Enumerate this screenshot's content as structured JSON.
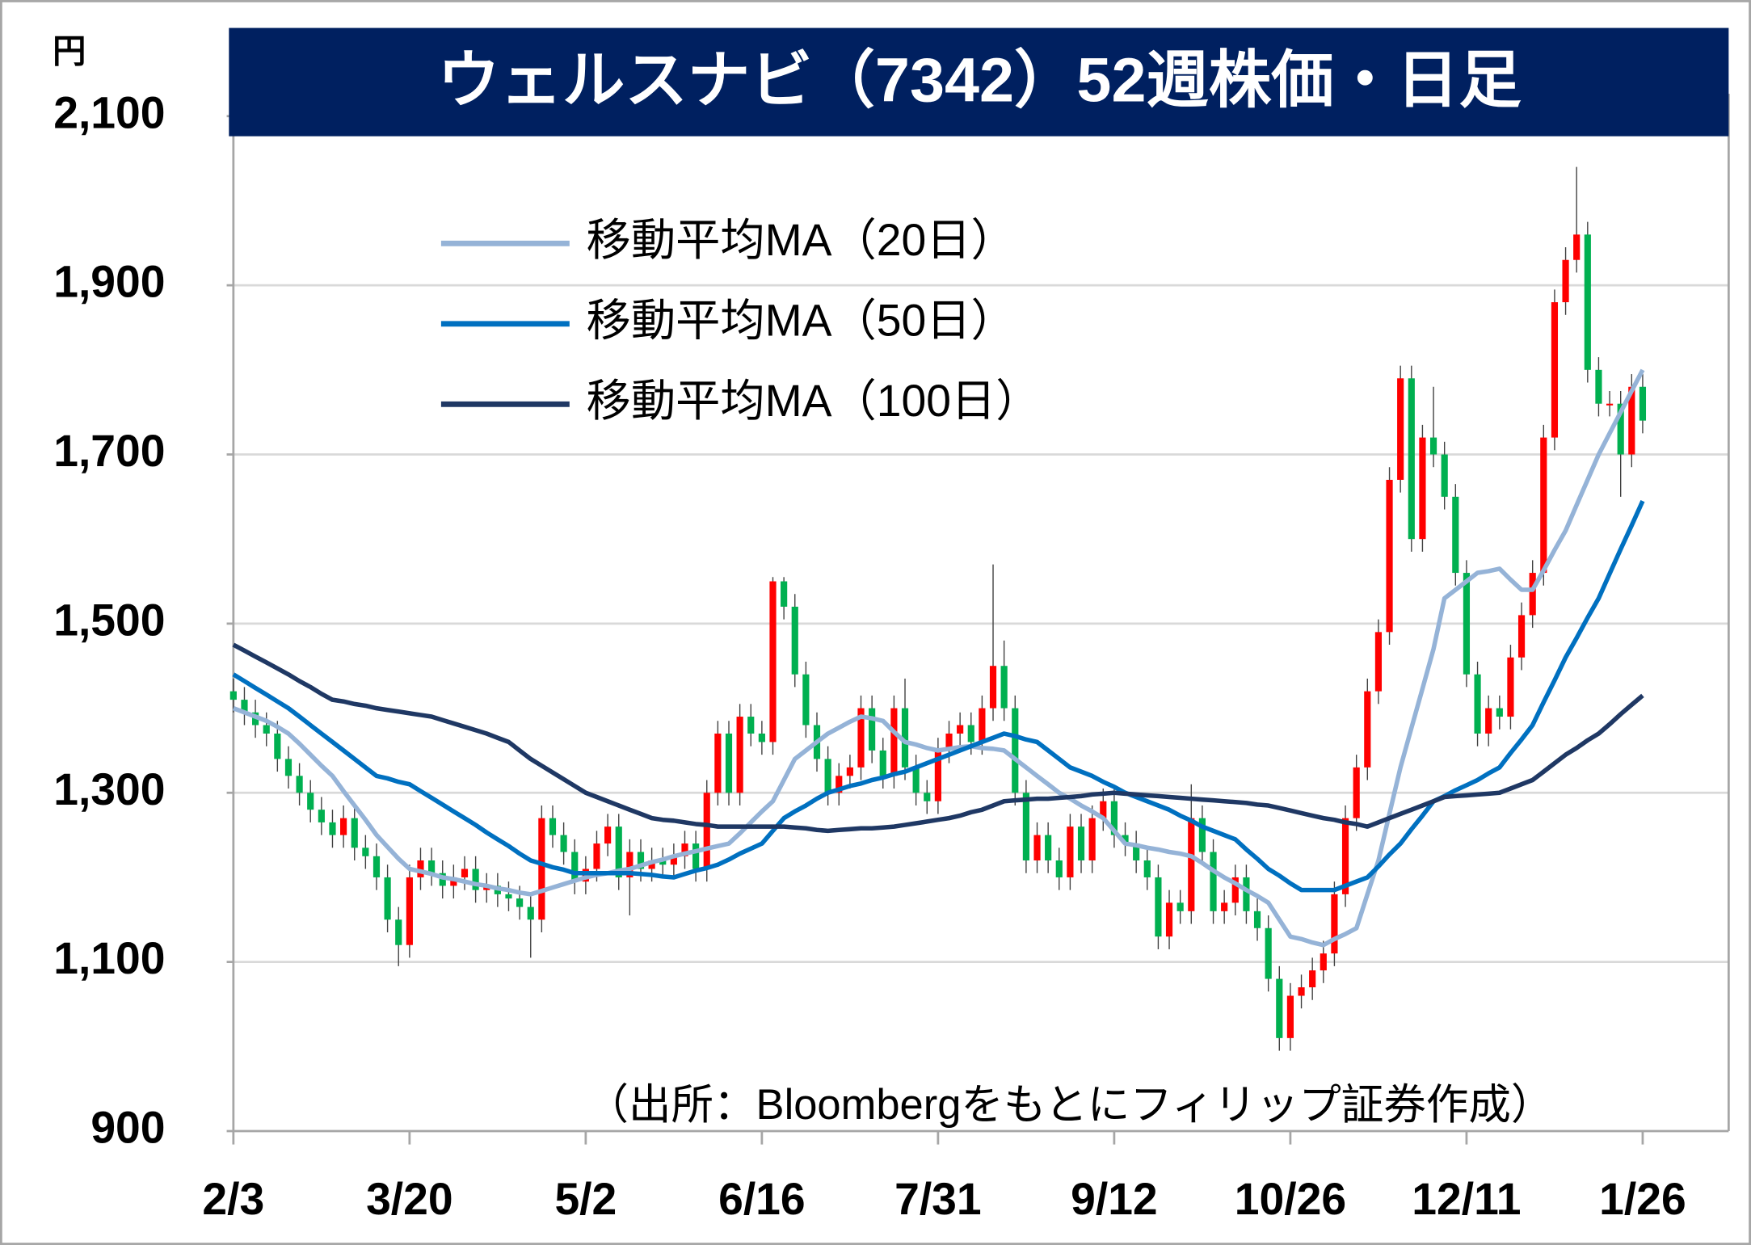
{
  "chart_data": {
    "type": "candlestick",
    "title": "ウェルスナビ（7342）52週株価・日足",
    "y_label": "円",
    "source": "（出所：Bloombergをもとにフィリップ証券作成）",
    "categories": [
      "2/3",
      null,
      null,
      null,
      null,
      null,
      null,
      null,
      null,
      null,
      null,
      null,
      null,
      null,
      null,
      null,
      "3/20",
      null,
      null,
      null,
      null,
      null,
      null,
      null,
      null,
      null,
      null,
      null,
      null,
      null,
      null,
      null,
      "5/2",
      null,
      null,
      null,
      null,
      null,
      null,
      null,
      null,
      null,
      null,
      null,
      null,
      null,
      null,
      null,
      "6/16",
      null,
      null,
      null,
      null,
      null,
      null,
      null,
      null,
      null,
      null,
      null,
      null,
      null,
      null,
      null,
      "7/31",
      null,
      null,
      null,
      null,
      null,
      null,
      null,
      null,
      null,
      null,
      null,
      null,
      null,
      null,
      null,
      "9/12",
      null,
      null,
      null,
      null,
      null,
      null,
      null,
      null,
      null,
      null,
      null,
      null,
      null,
      null,
      null,
      "10/26",
      null,
      null,
      null,
      null,
      null,
      null,
      null,
      null,
      null,
      null,
      null,
      null,
      null,
      null,
      null,
      "12/11",
      null,
      null,
      null,
      null,
      null,
      null,
      null,
      null,
      null,
      null,
      null,
      null,
      null,
      null,
      null,
      "1/26"
    ],
    "open": [
      1420,
      1410,
      1395,
      1380,
      1370,
      1340,
      1320,
      1300,
      1280,
      1265,
      1250,
      1270,
      1235,
      1225,
      1200,
      1150,
      1120,
      1200,
      1220,
      1205,
      1190,
      1200,
      1210,
      1185,
      1190,
      1180,
      1175,
      1165,
      1150,
      1270,
      1250,
      1230,
      1195,
      1210,
      1240,
      1260,
      1200,
      1230,
      1210,
      1220,
      1215,
      1225,
      1240,
      1210,
      1300,
      1370,
      1300,
      1390,
      1370,
      1360,
      1550,
      1520,
      1440,
      1380,
      1340,
      1300,
      1320,
      1330,
      1400,
      1350,
      1320,
      1400,
      1330,
      1300,
      1290,
      1350,
      1370,
      1380,
      1360,
      1400,
      1450,
      1400,
      1300,
      1220,
      1250,
      1220,
      1200,
      1260,
      1220,
      1270,
      1290,
      1250,
      1240,
      1220,
      1200,
      1130,
      1170,
      1160,
      1270,
      1230,
      1160,
      1170,
      1200,
      1160,
      1140,
      1080,
      1010,
      1060,
      1070,
      1090,
      1110,
      1180,
      1270,
      1330,
      1420,
      1490,
      1670,
      1790,
      1600,
      1720,
      1700,
      1650,
      1560,
      1440,
      1370,
      1400,
      1390,
      1460,
      1510,
      1560,
      1720,
      1880,
      1930,
      1960,
      1800,
      1760,
      1760,
      1700,
      1780
    ],
    "high": [
      1435,
      1425,
      1410,
      1395,
      1385,
      1355,
      1335,
      1315,
      1295,
      1280,
      1285,
      1285,
      1250,
      1240,
      1215,
      1165,
      1215,
      1235,
      1235,
      1220,
      1215,
      1225,
      1225,
      1205,
      1205,
      1195,
      1190,
      1180,
      1285,
      1285,
      1265,
      1245,
      1225,
      1255,
      1275,
      1275,
      1245,
      1245,
      1235,
      1235,
      1240,
      1255,
      1255,
      1315,
      1385,
      1385,
      1405,
      1405,
      1385,
      1555,
      1555,
      1535,
      1455,
      1395,
      1355,
      1335,
      1345,
      1415,
      1415,
      1365,
      1415,
      1435,
      1345,
      1315,
      1365,
      1385,
      1395,
      1395,
      1415,
      1570,
      1480,
      1415,
      1315,
      1265,
      1265,
      1235,
      1275,
      1275,
      1285,
      1305,
      1305,
      1265,
      1255,
      1235,
      1215,
      1185,
      1185,
      1310,
      1285,
      1245,
      1185,
      1215,
      1215,
      1175,
      1155,
      1095,
      1075,
      1085,
      1105,
      1125,
      1195,
      1285,
      1345,
      1435,
      1505,
      1685,
      1805,
      1805,
      1735,
      1780,
      1715,
      1665,
      1575,
      1455,
      1415,
      1415,
      1475,
      1525,
      1575,
      1735,
      1895,
      1945,
      2040,
      1975,
      1815,
      1775,
      1775,
      1795,
      1795
    ],
    "low": [
      1395,
      1380,
      1365,
      1355,
      1325,
      1305,
      1285,
      1265,
      1250,
      1235,
      1235,
      1220,
      1210,
      1185,
      1135,
      1095,
      1105,
      1185,
      1190,
      1175,
      1175,
      1185,
      1170,
      1170,
      1165,
      1160,
      1150,
      1105,
      1135,
      1235,
      1215,
      1180,
      1180,
      1195,
      1225,
      1185,
      1155,
      1195,
      1195,
      1200,
      1200,
      1210,
      1195,
      1195,
      1285,
      1285,
      1285,
      1355,
      1345,
      1345,
      1505,
      1425,
      1365,
      1325,
      1285,
      1285,
      1305,
      1315,
      1335,
      1305,
      1305,
      1315,
      1285,
      1275,
      1275,
      1335,
      1355,
      1345,
      1345,
      1385,
      1385,
      1285,
      1205,
      1205,
      1205,
      1185,
      1185,
      1205,
      1205,
      1255,
      1235,
      1225,
      1205,
      1185,
      1115,
      1115,
      1145,
      1145,
      1215,
      1145,
      1145,
      1155,
      1145,
      1125,
      1065,
      995,
      995,
      1045,
      1055,
      1075,
      1095,
      1165,
      1255,
      1315,
      1405,
      1475,
      1655,
      1585,
      1585,
      1685,
      1635,
      1545,
      1425,
      1355,
      1355,
      1375,
      1375,
      1445,
      1495,
      1545,
      1705,
      1865,
      1915,
      1785,
      1745,
      1745,
      1650,
      1685,
      1725
    ],
    "close": [
      1410,
      1395,
      1380,
      1370,
      1340,
      1320,
      1300,
      1280,
      1265,
      1250,
      1270,
      1235,
      1225,
      1200,
      1150,
      1120,
      1200,
      1220,
      1205,
      1190,
      1200,
      1210,
      1185,
      1190,
      1180,
      1175,
      1165,
      1150,
      1270,
      1250,
      1230,
      1195,
      1210,
      1240,
      1260,
      1200,
      1230,
      1210,
      1220,
      1215,
      1225,
      1240,
      1210,
      1300,
      1370,
      1300,
      1390,
      1370,
      1360,
      1550,
      1520,
      1440,
      1380,
      1340,
      1300,
      1320,
      1330,
      1400,
      1350,
      1320,
      1400,
      1330,
      1300,
      1290,
      1350,
      1370,
      1380,
      1360,
      1400,
      1450,
      1400,
      1300,
      1220,
      1250,
      1220,
      1200,
      1260,
      1220,
      1270,
      1290,
      1250,
      1240,
      1220,
      1200,
      1130,
      1170,
      1160,
      1270,
      1230,
      1160,
      1170,
      1200,
      1160,
      1140,
      1080,
      1010,
      1060,
      1070,
      1090,
      1110,
      1180,
      1270,
      1330,
      1420,
      1490,
      1670,
      1790,
      1600,
      1720,
      1700,
      1650,
      1560,
      1440,
      1370,
      1400,
      1390,
      1460,
      1510,
      1560,
      1720,
      1880,
      1930,
      1960,
      1800,
      1760,
      1760,
      1700,
      1780,
      1740
    ],
    "up_color": "#ff0000",
    "down_color": "#00b050",
    "series": [
      {
        "name": "移動平均MA（20日）",
        "color": "#95b3d7",
        "values": [
          1400,
          1395,
          1390,
          1385,
          1378,
          1370,
          1358,
          1345,
          1332,
          1320,
          1302,
          1285,
          1268,
          1250,
          1236,
          1222,
          1210,
          1207,
          1204,
          1200,
          1198,
          1195,
          1192,
          1190,
          1187,
          1185,
          1182,
          1180,
          1184,
          1188,
          1192,
          1196,
          1200,
          1203,
          1205,
          1208,
          1210,
          1214,
          1218,
          1221,
          1225,
          1228,
          1231,
          1234,
          1237,
          1240,
          1252,
          1265,
          1278,
          1290,
          1315,
          1340,
          1350,
          1360,
          1370,
          1377,
          1384,
          1390,
          1388,
          1385,
          1372,
          1360,
          1357,
          1353,
          1350,
          1352,
          1354,
          1355,
          1353,
          1352,
          1350,
          1340,
          1330,
          1320,
          1310,
          1300,
          1293,
          1285,
          1278,
          1270,
          1255,
          1240,
          1238,
          1235,
          1233,
          1230,
          1228,
          1225,
          1217,
          1208,
          1200,
          1193,
          1185,
          1178,
          1170,
          1150,
          1130,
          1127,
          1123,
          1120,
          1127,
          1133,
          1140,
          1180,
          1220,
          1275,
          1330,
          1377,
          1423,
          1470,
          1530,
          1540,
          1550,
          1560,
          1562,
          1565,
          1552,
          1540,
          1540,
          1563,
          1587,
          1610,
          1640,
          1670,
          1700,
          1725,
          1750,
          1775,
          1800
        ]
      },
      {
        "name": "移動平均MA（50日）",
        "color": "#0070c0",
        "values": [
          1440,
          1432,
          1424,
          1416,
          1408,
          1400,
          1390,
          1380,
          1370,
          1360,
          1350,
          1340,
          1330,
          1320,
          1317,
          1313,
          1310,
          1302,
          1294,
          1286,
          1278,
          1270,
          1262,
          1253,
          1245,
          1237,
          1228,
          1220,
          1216,
          1212,
          1209,
          1205,
          1205,
          1205,
          1205,
          1205,
          1205,
          1204,
          1203,
          1201,
          1200,
          1204,
          1208,
          1211,
          1215,
          1221,
          1228,
          1234,
          1240,
          1255,
          1270,
          1278,
          1285,
          1293,
          1300,
          1304,
          1308,
          1311,
          1315,
          1318,
          1322,
          1325,
          1330,
          1335,
          1340,
          1345,
          1350,
          1355,
          1360,
          1365,
          1370,
          1367,
          1363,
          1360,
          1350,
          1340,
          1330,
          1325,
          1320,
          1313,
          1307,
          1300,
          1295,
          1290,
          1285,
          1280,
          1273,
          1267,
          1260,
          1255,
          1250,
          1245,
          1233,
          1222,
          1210,
          1202,
          1193,
          1185,
          1185,
          1185,
          1185,
          1190,
          1195,
          1200,
          1213,
          1227,
          1240,
          1257,
          1273,
          1290,
          1296,
          1303,
          1309,
          1315,
          1323,
          1330,
          1347,
          1363,
          1380,
          1407,
          1433,
          1460,
          1483,
          1507,
          1530,
          1559,
          1588,
          1616,
          1645
        ]
      },
      {
        "name": "移動平均MA（100日）",
        "color": "#1f3864",
        "values": [
          1475,
          1468,
          1461,
          1454,
          1447,
          1440,
          1432,
          1425,
          1417,
          1410,
          1408,
          1405,
          1403,
          1400,
          1398,
          1396,
          1394,
          1392,
          1390,
          1386,
          1382,
          1378,
          1374,
          1370,
          1365,
          1360,
          1350,
          1340,
          1332,
          1324,
          1316,
          1308,
          1300,
          1295,
          1290,
          1285,
          1280,
          1275,
          1270,
          1268,
          1267,
          1265,
          1263,
          1262,
          1260,
          1260,
          1260,
          1260,
          1260,
          1260,
          1260,
          1259,
          1258,
          1256,
          1255,
          1256,
          1257,
          1258,
          1258,
          1259,
          1260,
          1262,
          1264,
          1266,
          1268,
          1270,
          1273,
          1277,
          1280,
          1285,
          1290,
          1291,
          1292,
          1293,
          1293,
          1294,
          1295,
          1296,
          1298,
          1299,
          1300,
          1299,
          1298,
          1297,
          1296,
          1295,
          1294,
          1293,
          1292,
          1291,
          1290,
          1289,
          1288,
          1286,
          1285,
          1282,
          1279,
          1276,
          1273,
          1270,
          1268,
          1265,
          1263,
          1260,
          1265,
          1270,
          1275,
          1280,
          1285,
          1290,
          1295,
          1296,
          1297,
          1298,
          1299,
          1300,
          1305,
          1310,
          1315,
          1325,
          1335,
          1345,
          1353,
          1362,
          1370,
          1381,
          1393,
          1404,
          1415
        ]
      }
    ],
    "ylim": [
      900,
      2100
    ],
    "yticks": [
      900,
      {
        "value": 1100,
        "label": "1,100"
      },
      {
        "value": 1300,
        "label": "1,300"
      },
      {
        "value": 1500,
        "label": "1,500"
      },
      {
        "value": 1700,
        "label": "1,700"
      },
      {
        "value": 1900,
        "label": "1,900"
      },
      {
        "value": 2100,
        "label": "2,100"
      }
    ],
    "grid": true,
    "title_background": "#002060"
  }
}
